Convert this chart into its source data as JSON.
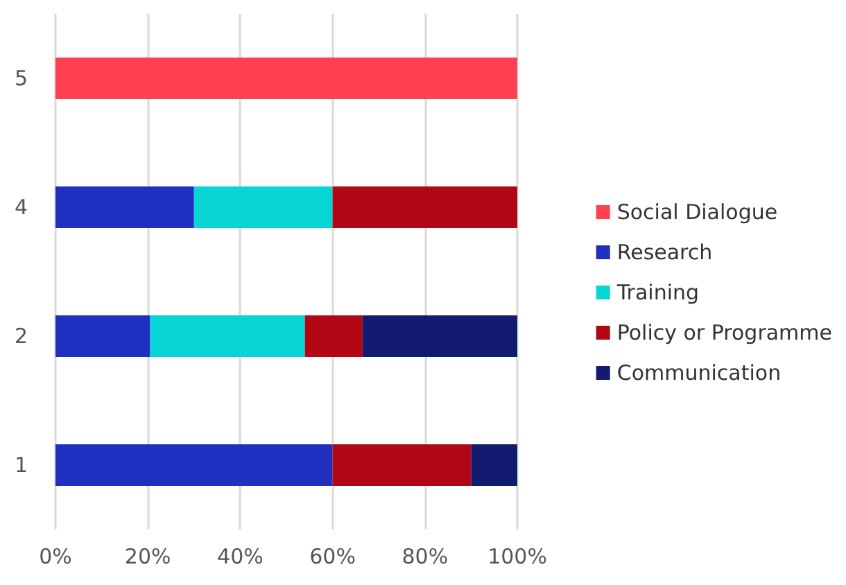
{
  "chart_data": {
    "type": "bar",
    "orientation": "horizontal",
    "stacked": true,
    "categories": [
      "5",
      "4",
      "2",
      "1"
    ],
    "series": [
      {
        "name": "Social Dialogue",
        "color": "#ff4050",
        "values": [
          100,
          null,
          null,
          null
        ]
      },
      {
        "name": "Research",
        "color": "#1f2fbf",
        "values": [
          null,
          30,
          20.5,
          60
        ]
      },
      {
        "name": "Training",
        "color": "#07d5d5",
        "values": [
          null,
          30,
          33.5,
          null
        ]
      },
      {
        "name": "Policy or Programme",
        "color": "#b30615",
        "values": [
          null,
          40,
          12.5,
          30
        ]
      },
      {
        "name": "Communication",
        "color": "#121b70",
        "values": [
          null,
          null,
          33.5,
          10
        ]
      }
    ],
    "xlim": [
      0,
      100
    ],
    "xticks": [
      {
        "value": 0,
        "label": "0%"
      },
      {
        "value": 20,
        "label": "20%"
      },
      {
        "value": 40,
        "label": "40%"
      },
      {
        "value": 60,
        "label": "60%"
      },
      {
        "value": 80,
        "label": "80%"
      },
      {
        "value": 100,
        "label": "100%"
      }
    ],
    "grid": "x",
    "legend": "right"
  }
}
